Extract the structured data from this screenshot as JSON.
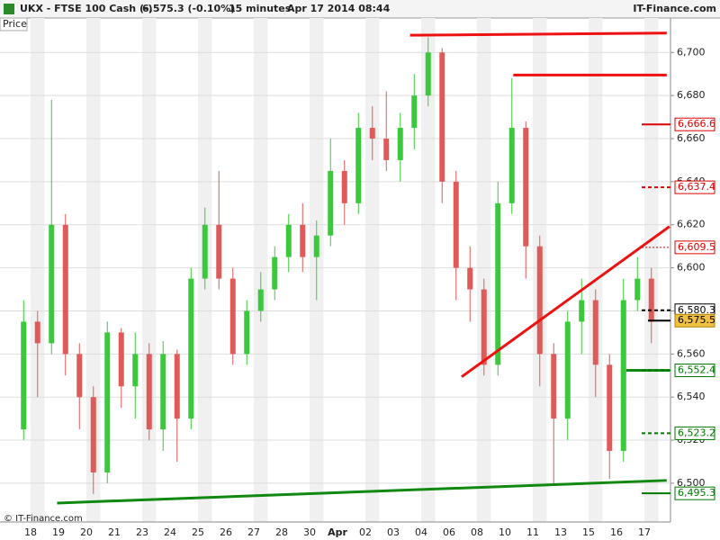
{
  "chart_data": {
    "type": "candlestick",
    "title": "UKX - FTSE 100 Cash (-)",
    "last": "6,575.3 (-0.10%)",
    "interval": "15 minutes",
    "timestamp": "Apr 17 2014 08:44",
    "brand": "IT-Finance.com",
    "panel_label": "Price",
    "copyright": "© IT-Finance.com",
    "categories": [
      "18",
      "19",
      "20",
      "21",
      "23",
      "24",
      "25",
      "26",
      "27",
      "28",
      "30",
      "Apr",
      "02",
      "03",
      "04",
      "06",
      "08",
      "10",
      "11",
      "13",
      "15",
      "16",
      "17"
    ],
    "open": [
      6525,
      6575,
      6565,
      6620,
      6560,
      6540,
      6505,
      6570,
      6545,
      6560,
      6525,
      6560,
      6530,
      6595,
      6620,
      6595,
      6560,
      6580,
      6590,
      6605,
      6620,
      6605,
      6615,
      6645,
      6630,
      6665,
      6660,
      6650,
      6665,
      6680,
      6700,
      6640,
      6600,
      6590,
      6555,
      6630,
      6665,
      6610,
      6560,
      6530,
      6575,
      6585,
      6555,
      6515,
      6585,
      6595
    ],
    "high": [
      6585,
      6580,
      6678,
      6625,
      6565,
      6545,
      6575,
      6572,
      6570,
      6565,
      6566,
      6562,
      6600,
      6628,
      6645,
      6600,
      6585,
      6598,
      6610,
      6625,
      6630,
      6622,
      6660,
      6650,
      6672,
      6675,
      6682,
      6672,
      6690,
      6707,
      6702,
      6645,
      6610,
      6595,
      6640,
      6688,
      6668,
      6615,
      6565,
      6580,
      6595,
      6590,
      6560,
      6595,
      6605,
      6600
    ],
    "low": [
      6520,
      6540,
      6560,
      6550,
      6525,
      6495,
      6500,
      6535,
      6530,
      6520,
      6515,
      6510,
      6525,
      6590,
      6590,
      6555,
      6555,
      6575,
      6585,
      6598,
      6598,
      6585,
      6610,
      6620,
      6625,
      6650,
      6645,
      6640,
      6655,
      6675,
      6630,
      6585,
      6575,
      6550,
      6550,
      6625,
      6595,
      6545,
      6500,
      6520,
      6560,
      6540,
      6502,
      6510,
      6580,
      6565
    ],
    "close": [
      6575,
      6565,
      6620,
      6560,
      6540,
      6505,
      6570,
      6545,
      6560,
      6525,
      6560,
      6530,
      6595,
      6620,
      6595,
      6560,
      6580,
      6590,
      6605,
      6620,
      6605,
      6615,
      6645,
      6630,
      6665,
      6660,
      6650,
      6665,
      6680,
      6700,
      6640,
      6600,
      6590,
      6555,
      6630,
      6665,
      6610,
      6560,
      6530,
      6575,
      6585,
      6555,
      6515,
      6585,
      6595,
      6575
    ],
    "up_color": "#3cc83c",
    "down_color": "#e05a5a",
    "ylim": [
      6482,
      6716
    ],
    "yticks": [
      {
        "value": 6500,
        "label": "6,500"
      },
      {
        "value": 6520,
        "label": "6,520"
      },
      {
        "value": 6540,
        "label": "6,540"
      },
      {
        "value": 6560,
        "label": "6,560"
      },
      {
        "value": 6580,
        "label": "6,580"
      },
      {
        "value": 6600,
        "label": "6,600"
      },
      {
        "value": 6620,
        "label": "6,620"
      },
      {
        "value": 6640,
        "label": "6,640"
      },
      {
        "value": 6660,
        "label": "6,660"
      },
      {
        "value": 6680,
        "label": "6,680"
      },
      {
        "value": 6700,
        "label": "6,700"
      }
    ],
    "grid": true,
    "levels": [
      {
        "value": 6666.6,
        "label": "6,666.6",
        "color": "#dd0000",
        "style": "solid"
      },
      {
        "value": 6637.4,
        "label": "6,637.4",
        "color": "#dd0000",
        "style": "dashed"
      },
      {
        "value": 6609.5,
        "label": "6,609.5",
        "color": "#dd0000",
        "style": "dotted"
      },
      {
        "value": 6580.3,
        "label": "6,580.3",
        "color": "#000000",
        "style": "dashed"
      },
      {
        "value": 6575.5,
        "label": "6,575.5",
        "color": "#f0c040",
        "style": "current"
      },
      {
        "value": 6552.4,
        "label": "6,552.4",
        "color": "#007700",
        "style": "dashed"
      },
      {
        "value": 6523.2,
        "label": "6,523.2",
        "color": "#007700",
        "style": "dashed"
      },
      {
        "value": 6495.3,
        "label": "6,495.3",
        "color": "#007700",
        "style": "solid"
      }
    ],
    "trendlines": [
      {
        "from": [
          27.7,
          6708
        ],
        "to": [
          46.1,
          6709
        ],
        "color": "#ee1111"
      },
      {
        "from": [
          35.1,
          6689.5
        ],
        "to": [
          46.1,
          6689.5
        ],
        "color": "#ee1111"
      },
      {
        "from": [
          31.4,
          6549.4
        ],
        "to": [
          46.3,
          6619.2
        ],
        "color": "#ee1111"
      },
      {
        "from": [
          2.4,
          6490.8
        ],
        "to": [
          46.1,
          6501.3
        ],
        "color": "#118811"
      },
      {
        "from": [
          43.2,
          6552.4
        ],
        "to": [
          46.3,
          6552.4
        ],
        "color": "#118811"
      }
    ]
  }
}
